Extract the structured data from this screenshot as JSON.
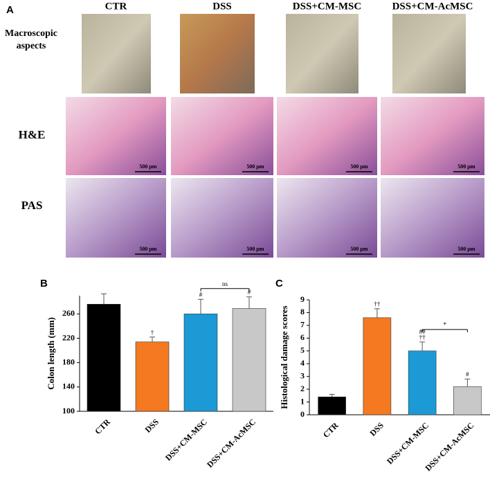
{
  "panel_a": {
    "letter": "A",
    "columns": [
      "CTR",
      "DSS",
      "DSS+CM-MSC",
      "DSS+CM-AcMSC"
    ],
    "rows": [
      "Macroscopic aspects",
      "H&E",
      "PAS"
    ],
    "scale_bars": [
      "500 μm",
      "500 μm",
      "500 μm",
      "500 μm",
      "500 μm",
      "500 μm",
      "500 μm",
      "500 μm"
    ]
  },
  "chart_data": [
    {
      "type": "bar",
      "panel": "B",
      "ylabel": "Colon length (mm)",
      "categories": [
        "CTR",
        "DSS",
        "DSS+CM-MSC",
        "DSS+CM-AcMSC"
      ],
      "values": [
        276,
        214,
        260,
        269
      ],
      "errors": [
        17,
        8,
        24,
        19
      ],
      "colors": [
        "#000000",
        "#f47920",
        "#1b9ad6",
        "#c8c8c8"
      ],
      "annotations": [
        [],
        [
          "†"
        ],
        [
          "#"
        ],
        [
          "#"
        ]
      ],
      "bracket_between": [
        2,
        3
      ],
      "bracket_label": "ns",
      "ylim": [
        100,
        290
      ],
      "yticks": [
        100,
        140,
        180,
        220,
        260
      ]
    },
    {
      "type": "bar",
      "panel": "C",
      "ylabel": "Histological damage scores",
      "categories": [
        "CTR",
        "DSS",
        "DSS+CM-MSC",
        "DSS+CM-AcMSC"
      ],
      "values": [
        1.4,
        7.6,
        5.0,
        2.2
      ],
      "errors": [
        0.2,
        0.7,
        0.7,
        0.6
      ],
      "colors": [
        "#000000",
        "#f47920",
        "#1b9ad6",
        "#c8c8c8"
      ],
      "annotations": [
        [],
        [
          "††"
        ],
        [
          "##",
          "††"
        ],
        [
          "#"
        ]
      ],
      "bracket_between": [
        2,
        3
      ],
      "bracket_label": "*",
      "ylim": [
        0,
        9
      ],
      "yticks": [
        0,
        1,
        2,
        3,
        4,
        5,
        6,
        7,
        8,
        9
      ]
    }
  ]
}
